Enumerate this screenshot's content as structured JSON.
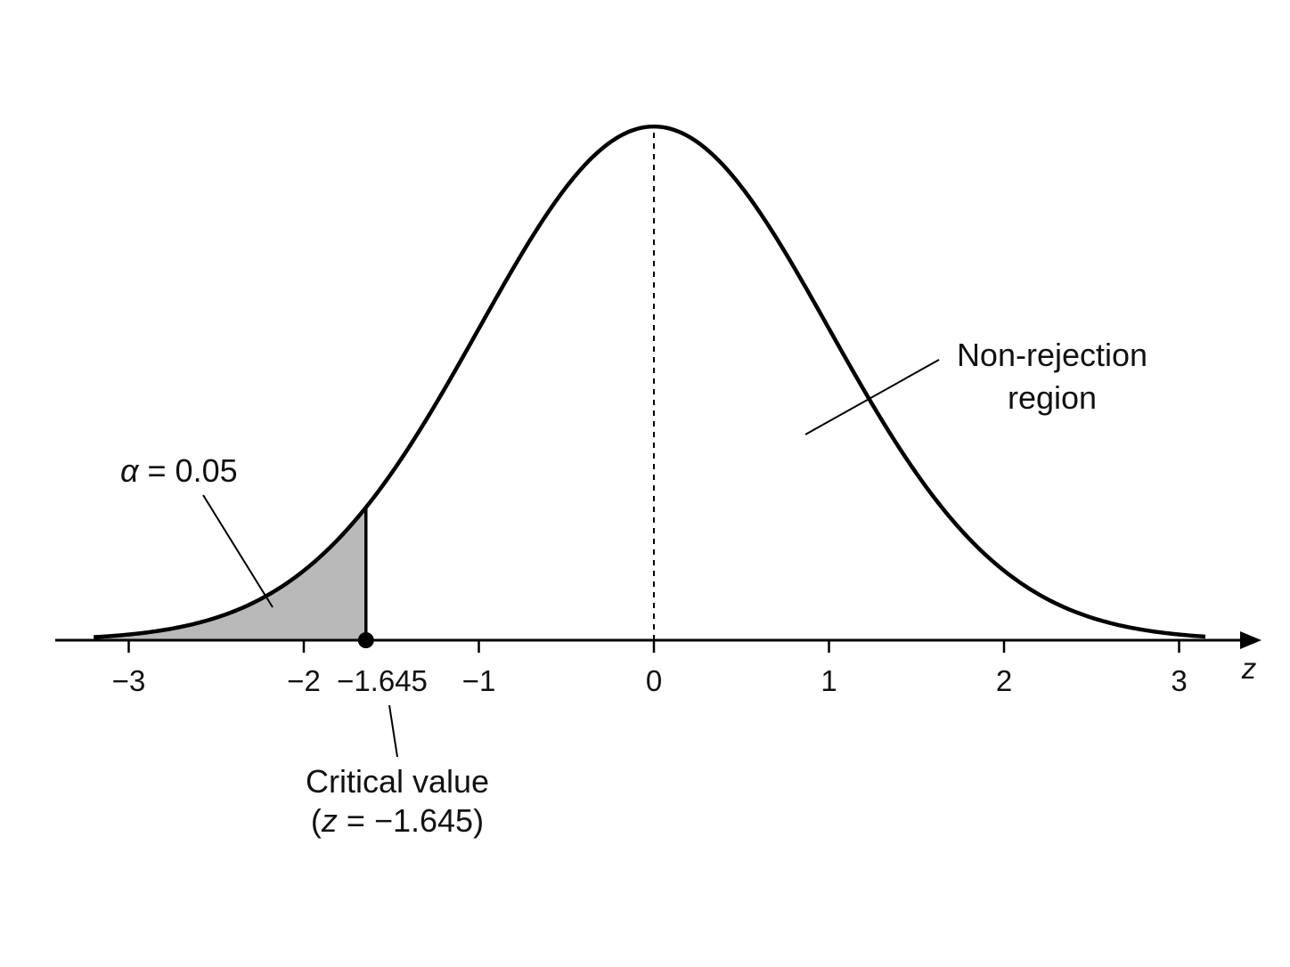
{
  "chart_data": {
    "type": "area",
    "distribution": "standard normal",
    "x_range": [
      -3.2,
      3.15
    ],
    "xlim": [
      -3.42,
      3.45
    ],
    "ylim": [
      0,
      0.399
    ],
    "grid": false,
    "legend": "none",
    "xlabel": "z",
    "ticks": [
      {
        "value": -3,
        "label": "−3"
      },
      {
        "value": -2,
        "label": "−2"
      },
      {
        "value": -1,
        "label": "−1"
      },
      {
        "value": 0,
        "label": "0"
      },
      {
        "value": 1,
        "label": "1"
      },
      {
        "value": 2,
        "label": "2"
      },
      {
        "value": 3,
        "label": "3"
      }
    ],
    "critical_value": -1.645,
    "critical_tick_label": "−1.645",
    "shaded_region": {
      "from": -3.2,
      "to": -1.645
    },
    "mean_line": 0,
    "annotations": {
      "alpha": {
        "symbol": "α",
        "text": " = 0.05"
      },
      "non_rejection": {
        "line1": "Non-rejection",
        "line2": "region"
      },
      "critical": {
        "line1": "Critical value",
        "open": "(",
        "var": "z",
        "eq": " = −1.645",
        "close": ")"
      }
    },
    "colors": {
      "curve": "#000000",
      "shade": "#b9b9b9",
      "axis": "#000000",
      "text": "#111111"
    }
  }
}
